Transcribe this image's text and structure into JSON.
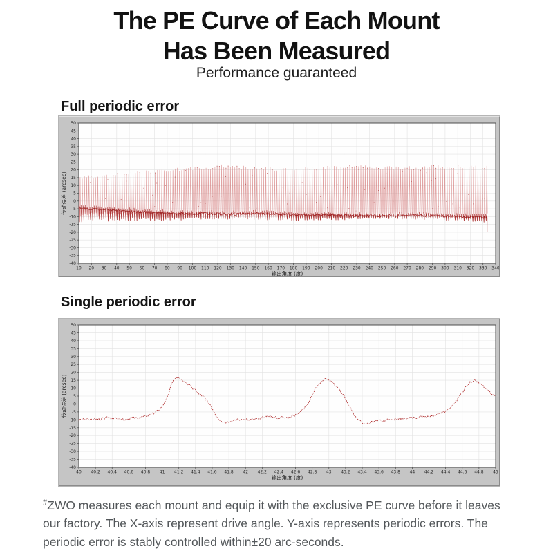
{
  "header": {
    "title_line1": "The PE Curve of Each Mount",
    "title_line2": "Has Been Measured",
    "subtitle": "Performance guaranteed"
  },
  "footer": {
    "marker": "#",
    "text": "ZWO measures each mount and equip it with the exclusive PE curve before it leaves our factory. The X-axis represent drive angle. Y-axis represents periodic errors. The periodic error is stably controlled within±20 arc-seconds."
  },
  "colors": {
    "widget_gray": "#c5c5c5",
    "plot_bg": "#fefefe",
    "grid": "#e2e2e2",
    "plot_border": "#4d4d4d",
    "tick_text": "#2b2b2b",
    "signal_light_red": "rgba(205,100,100,0.60)",
    "signal_dark_red": "rgba(160,30,30,0.80)",
    "signal_spine_red": "rgba(152,24,24,0.88)",
    "single_curve_red": "#b23636"
  },
  "chart_data": [
    {
      "type": "line",
      "heading": "Full periodic error",
      "xlabel": "输出角度 (度)",
      "ylabel": "传动误差 (arcsec)",
      "xlim": [
        10,
        340
      ],
      "ylim": [
        -40,
        50
      ],
      "x_ticks": [
        "10",
        "20",
        "30",
        "40",
        "50",
        "60",
        "70",
        "80",
        "90",
        "100",
        "110",
        "120",
        "130",
        "140",
        "150",
        "160",
        "170",
        "180",
        "190",
        "200",
        "210",
        "220",
        "230",
        "240",
        "250",
        "260",
        "270",
        "280",
        "290",
        "300",
        "310",
        "320",
        "330",
        "340"
      ],
      "y_ticks": [
        "50",
        "45",
        "40",
        "35",
        "30",
        "25",
        "20",
        "15",
        "10",
        "5",
        "0",
        "-5",
        "-10",
        "-15",
        "-20",
        "-25",
        "-30",
        "-35",
        "-40"
      ],
      "grid": true,
      "legend": null,
      "series_signal": {
        "description": "dense high-frequency periodic error oscillation of full mount rotation, drawn as red trace",
        "period_deg": 1.75,
        "x_start": 10,
        "x_end": 333,
        "top_envelope": [
          [
            10,
            15
          ],
          [
            30,
            16.5
          ],
          [
            50,
            18
          ],
          [
            70,
            19
          ],
          [
            90,
            20.5
          ],
          [
            110,
            21.5
          ],
          [
            125,
            22.5
          ],
          [
            150,
            21
          ],
          [
            170,
            20.5
          ],
          [
            190,
            21
          ],
          [
            210,
            21.5
          ],
          [
            230,
            22
          ],
          [
            250,
            21.5
          ],
          [
            270,
            21.5
          ],
          [
            290,
            22
          ],
          [
            310,
            22
          ],
          [
            333,
            22
          ]
        ],
        "bottom_envelope": [
          [
            10,
            -13
          ],
          [
            30,
            -12.5
          ],
          [
            50,
            -12
          ],
          [
            70,
            -12
          ],
          [
            90,
            -11.5
          ],
          [
            110,
            -11
          ],
          [
            130,
            -11
          ],
          [
            150,
            -11.5
          ],
          [
            170,
            -12
          ],
          [
            190,
            -12
          ],
          [
            210,
            -11.5
          ],
          [
            230,
            -11
          ],
          [
            250,
            -10.5
          ],
          [
            270,
            -11
          ],
          [
            290,
            -11.5
          ],
          [
            310,
            -12
          ],
          [
            333,
            -13
          ]
        ],
        "dwell_line": [
          [
            10,
            -4.5
          ],
          [
            30,
            -5.5
          ],
          [
            50,
            -6.5
          ],
          [
            70,
            -7.5
          ],
          [
            90,
            -8
          ],
          [
            110,
            -8
          ],
          [
            130,
            -8.5
          ],
          [
            150,
            -8
          ],
          [
            170,
            -8.5
          ],
          [
            190,
            -9
          ],
          [
            210,
            -9
          ],
          [
            230,
            -9.5
          ],
          [
            250,
            -9.5
          ],
          [
            270,
            -9
          ],
          [
            290,
            -9.5
          ],
          [
            310,
            -10
          ],
          [
            333,
            -10.5
          ]
        ],
        "end_spike": [
          333.3,
          -20
        ]
      }
    },
    {
      "type": "line",
      "heading": "Single periodic error",
      "xlabel": "输出角度 (度)",
      "ylabel": "传动误差 (arcsec)",
      "xlim": [
        40,
        45
      ],
      "ylim": [
        -40,
        50
      ],
      "x_ticks": [
        "40",
        "40.2",
        "40.4",
        "40.6",
        "40.8",
        "41",
        "41.2",
        "41.4",
        "41.6",
        "41.8",
        "42",
        "42.2",
        "42.4",
        "42.6",
        "42.8",
        "43",
        "43.2",
        "43.4",
        "43.6",
        "43.8",
        "44",
        "44.2",
        "44.4",
        "44.6",
        "44.8",
        "45"
      ],
      "y_ticks": [
        "50",
        "45",
        "40",
        "35",
        "30",
        "25",
        "20",
        "15",
        "10",
        "5",
        "0",
        "-5",
        "-10",
        "-15",
        "-20",
        "-25",
        "-30",
        "-35",
        "-40"
      ],
      "grid": true,
      "legend": null,
      "points": [
        [
          40.0,
          -10.3
        ],
        [
          40.05,
          -9.8
        ],
        [
          40.1,
          -9.4
        ],
        [
          40.15,
          -9.9
        ],
        [
          40.2,
          -9.1
        ],
        [
          40.25,
          -9.7
        ],
        [
          40.3,
          -9.0
        ],
        [
          40.35,
          -8.6
        ],
        [
          40.4,
          -9.4
        ],
        [
          40.45,
          -9.0
        ],
        [
          40.5,
          -9.5
        ],
        [
          40.55,
          -10.1
        ],
        [
          40.6,
          -9.2
        ],
        [
          40.65,
          -8.4
        ],
        [
          40.7,
          -9.0
        ],
        [
          40.75,
          -8.1
        ],
        [
          40.8,
          -7.6
        ],
        [
          40.85,
          -6.9
        ],
        [
          40.9,
          -5.8
        ],
        [
          40.95,
          -4.0
        ],
        [
          41.0,
          -1.5
        ],
        [
          41.05,
          2.5
        ],
        [
          41.08,
          7.0
        ],
        [
          41.11,
          12.0
        ],
        [
          41.14,
          15.5
        ],
        [
          41.18,
          16.8
        ],
        [
          41.22,
          15.8
        ],
        [
          41.27,
          14.0
        ],
        [
          41.32,
          12.0
        ],
        [
          41.38,
          9.5
        ],
        [
          41.44,
          7.0
        ],
        [
          41.5,
          4.5
        ],
        [
          41.55,
          1.5
        ],
        [
          41.6,
          -3.0
        ],
        [
          41.65,
          -8.0
        ],
        [
          41.7,
          -10.8
        ],
        [
          41.75,
          -12.0
        ],
        [
          41.8,
          -11.3
        ],
        [
          41.85,
          -10.2
        ],
        [
          41.9,
          -9.9
        ],
        [
          41.95,
          -10.1
        ],
        [
          42.0,
          -9.6
        ],
        [
          42.05,
          -9.9
        ],
        [
          42.1,
          -9.4
        ],
        [
          42.15,
          -9.0
        ],
        [
          42.2,
          -8.5
        ],
        [
          42.25,
          -7.8
        ],
        [
          42.3,
          -7.4
        ],
        [
          42.35,
          -8.3
        ],
        [
          42.4,
          -8.9
        ],
        [
          42.45,
          -8.1
        ],
        [
          42.5,
          -8.7
        ],
        [
          42.55,
          -7.9
        ],
        [
          42.6,
          -6.9
        ],
        [
          42.65,
          -5.2
        ],
        [
          42.7,
          -2.8
        ],
        [
          42.75,
          0.8
        ],
        [
          42.8,
          5.5
        ],
        [
          42.85,
          10.5
        ],
        [
          42.9,
          14.0
        ],
        [
          42.95,
          16.0
        ],
        [
          43.0,
          15.2
        ],
        [
          43.05,
          13.5
        ],
        [
          43.1,
          10.8
        ],
        [
          43.15,
          7.5
        ],
        [
          43.2,
          3.5
        ],
        [
          43.25,
          -1.5
        ],
        [
          43.3,
          -6.5
        ],
        [
          43.35,
          -10.0
        ],
        [
          43.4,
          -12.0
        ],
        [
          43.45,
          -12.6
        ],
        [
          43.5,
          -11.6
        ],
        [
          43.55,
          -10.6
        ],
        [
          43.6,
          -10.1
        ],
        [
          43.65,
          -10.5
        ],
        [
          43.7,
          -9.9
        ],
        [
          43.75,
          -10.3
        ],
        [
          43.8,
          -9.6
        ],
        [
          43.85,
          -9.1
        ],
        [
          43.9,
          -9.4
        ],
        [
          43.95,
          -8.9
        ],
        [
          44.0,
          -8.6
        ],
        [
          44.05,
          -8.9
        ],
        [
          44.1,
          -8.2
        ],
        [
          44.15,
          -8.6
        ],
        [
          44.2,
          -7.7
        ],
        [
          44.25,
          -7.2
        ],
        [
          44.3,
          -6.6
        ],
        [
          44.35,
          -5.7
        ],
        [
          44.4,
          -4.6
        ],
        [
          44.45,
          -2.8
        ],
        [
          44.5,
          0.0
        ],
        [
          44.55,
          3.5
        ],
        [
          44.6,
          7.5
        ],
        [
          44.65,
          11.5
        ],
        [
          44.7,
          14.0
        ],
        [
          44.75,
          15.2
        ],
        [
          44.8,
          13.8
        ],
        [
          44.85,
          11.5
        ],
        [
          44.9,
          9.0
        ],
        [
          44.95,
          6.5
        ],
        [
          45.0,
          4.8
        ]
      ]
    }
  ]
}
